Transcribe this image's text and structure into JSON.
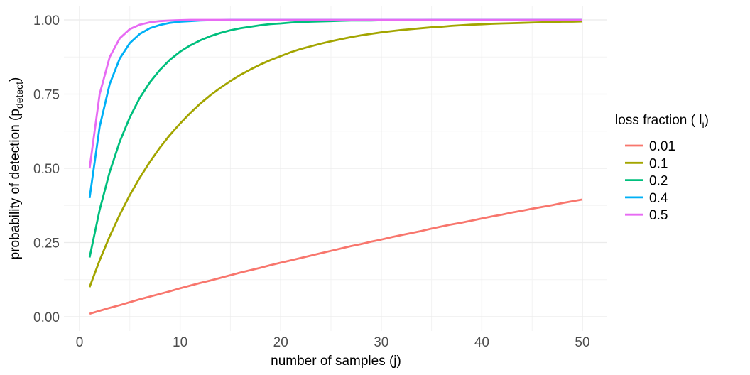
{
  "chart_data": {
    "type": "line",
    "xlabel": "number of samples (j)",
    "ylabel_main": "probability of detection (p",
    "ylabel_sub": "detect",
    "ylabel_close": ")",
    "xlim": [
      0,
      50
    ],
    "ylim": [
      0,
      1
    ],
    "xticks": [
      0,
      10,
      20,
      30,
      40,
      50
    ],
    "xtick_labels": [
      "0",
      "10",
      "20",
      "30",
      "40",
      "50"
    ],
    "yticks": [
      0,
      0.25,
      0.5,
      0.75,
      1.0
    ],
    "ytick_labels": [
      "0.00",
      "0.25",
      "0.50",
      "0.75",
      "1.00"
    ],
    "grid": true,
    "legend_position": "right",
    "legend_title_main": "loss fraction ( l",
    "legend_title_sub": "i",
    "legend_title_close": ")",
    "x": [
      1,
      2,
      3,
      4,
      5,
      6,
      7,
      8,
      9,
      10,
      11,
      12,
      13,
      14,
      15,
      16,
      17,
      18,
      19,
      20,
      21,
      22,
      23,
      24,
      25,
      26,
      27,
      28,
      29,
      30,
      31,
      32,
      33,
      34,
      35,
      36,
      37,
      38,
      39,
      40,
      41,
      42,
      43,
      44,
      45,
      46,
      47,
      48,
      49,
      50
    ],
    "series": [
      {
        "name": "0.01",
        "color": "#F8766D",
        "values": [
          0.01,
          0.02,
          0.03,
          0.039,
          0.049,
          0.059,
          0.068,
          0.077,
          0.086,
          0.096,
          0.105,
          0.114,
          0.122,
          0.131,
          0.14,
          0.149,
          0.157,
          0.165,
          0.174,
          0.182,
          0.19,
          0.198,
          0.206,
          0.214,
          0.222,
          0.23,
          0.238,
          0.245,
          0.253,
          0.26,
          0.268,
          0.275,
          0.282,
          0.289,
          0.297,
          0.304,
          0.311,
          0.317,
          0.324,
          0.331,
          0.338,
          0.344,
          0.351,
          0.357,
          0.364,
          0.37,
          0.376,
          0.383,
          0.389,
          0.395
        ]
      },
      {
        "name": "0.1",
        "color": "#A3A500",
        "values": [
          0.1,
          0.19,
          0.271,
          0.344,
          0.41,
          0.469,
          0.522,
          0.57,
          0.613,
          0.651,
          0.686,
          0.718,
          0.746,
          0.771,
          0.794,
          0.815,
          0.833,
          0.85,
          0.865,
          0.878,
          0.891,
          0.902,
          0.911,
          0.92,
          0.928,
          0.935,
          0.942,
          0.948,
          0.953,
          0.958,
          0.962,
          0.966,
          0.969,
          0.972,
          0.975,
          0.977,
          0.98,
          0.982,
          0.984,
          0.985,
          0.987,
          0.988,
          0.989,
          0.99,
          0.991,
          0.992,
          0.993,
          0.994,
          0.994,
          0.995
        ]
      },
      {
        "name": "0.2",
        "color": "#00BF7D",
        "values": [
          0.2,
          0.36,
          0.488,
          0.59,
          0.672,
          0.738,
          0.79,
          0.832,
          0.866,
          0.893,
          0.914,
          0.931,
          0.945,
          0.956,
          0.965,
          0.972,
          0.977,
          0.982,
          0.986,
          0.988,
          0.991,
          0.993,
          0.994,
          0.995,
          0.996,
          0.997,
          0.998,
          0.998,
          0.998,
          0.999,
          0.999,
          0.999,
          0.999,
          0.999,
          1.0,
          1.0,
          1.0,
          1.0,
          1.0,
          1.0,
          1.0,
          1.0,
          1.0,
          1.0,
          1.0,
          1.0,
          1.0,
          1.0,
          1.0,
          1.0
        ]
      },
      {
        "name": "0.4",
        "color": "#00B0F6",
        "values": [
          0.4,
          0.64,
          0.784,
          0.87,
          0.922,
          0.953,
          0.972,
          0.983,
          0.99,
          0.994,
          0.996,
          0.998,
          0.999,
          0.999,
          1.0,
          1.0,
          1.0,
          1.0,
          1.0,
          1.0,
          1.0,
          1.0,
          1.0,
          1.0,
          1.0,
          1.0,
          1.0,
          1.0,
          1.0,
          1.0,
          1.0,
          1.0,
          1.0,
          1.0,
          1.0,
          1.0,
          1.0,
          1.0,
          1.0,
          1.0,
          1.0,
          1.0,
          1.0,
          1.0,
          1.0,
          1.0,
          1.0,
          1.0,
          1.0,
          1.0
        ]
      },
      {
        "name": "0.5",
        "color": "#E76BF3",
        "values": [
          0.5,
          0.75,
          0.875,
          0.938,
          0.969,
          0.984,
          0.992,
          0.996,
          0.998,
          0.999,
          1.0,
          1.0,
          1.0,
          1.0,
          1.0,
          1.0,
          1.0,
          1.0,
          1.0,
          1.0,
          1.0,
          1.0,
          1.0,
          1.0,
          1.0,
          1.0,
          1.0,
          1.0,
          1.0,
          1.0,
          1.0,
          1.0,
          1.0,
          1.0,
          1.0,
          1.0,
          1.0,
          1.0,
          1.0,
          1.0,
          1.0,
          1.0,
          1.0,
          1.0,
          1.0,
          1.0,
          1.0,
          1.0,
          1.0,
          1.0
        ]
      }
    ]
  }
}
